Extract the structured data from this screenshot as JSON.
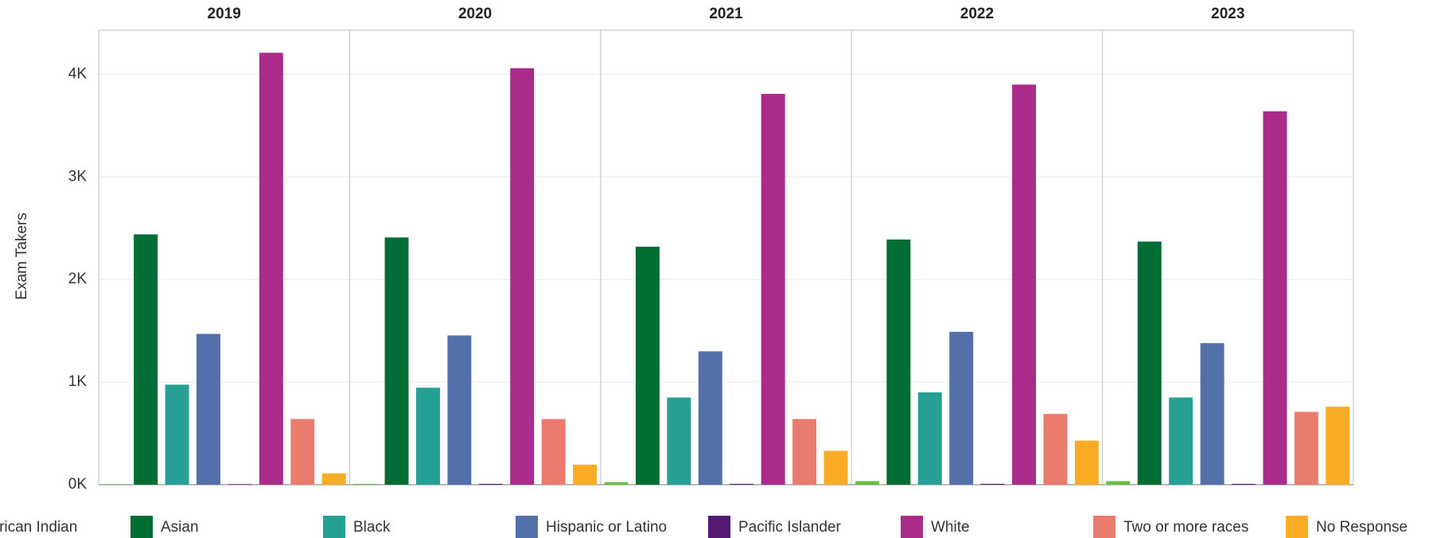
{
  "chart_data": {
    "type": "bar",
    "y_label": "Exam Takers",
    "categories": [
      "2019",
      "2020",
      "2021",
      "2022",
      "2023"
    ],
    "series": [
      {
        "name": "American Indian",
        "color": "#6abd45",
        "values": [
          5,
          8,
          25,
          35,
          35
        ]
      },
      {
        "name": "Asian",
        "color": "#006d35",
        "values": [
          2440,
          2410,
          2320,
          2390,
          2370
        ]
      },
      {
        "name": "Black",
        "color": "#26a094",
        "values": [
          975,
          945,
          850,
          900,
          850
        ]
      },
      {
        "name": "Hispanic or Latino",
        "color": "#5470aa",
        "values": [
          1470,
          1455,
          1300,
          1490,
          1380
        ]
      },
      {
        "name": "Pacific Islander",
        "color": "#541a74",
        "values": [
          5,
          8,
          8,
          8,
          8
        ]
      },
      {
        "name": "White",
        "color": "#ab2b8b",
        "values": [
          4210,
          4060,
          3810,
          3900,
          3640
        ]
      },
      {
        "name": "Two or more races",
        "color": "#ea7b6f",
        "values": [
          640,
          640,
          640,
          690,
          710
        ]
      },
      {
        "name": "No Response",
        "color": "#fbac27",
        "values": [
          110,
          195,
          330,
          430,
          760
        ]
      }
    ],
    "ylim": [
      0,
      4430
    ],
    "yticks": [
      {
        "value": 0,
        "label": "0K"
      },
      {
        "value": 1000,
        "label": "1K"
      },
      {
        "value": 2000,
        "label": "2K"
      },
      {
        "value": 3000,
        "label": "3K"
      },
      {
        "value": 4000,
        "label": "4K"
      }
    ],
    "grid": true
  }
}
